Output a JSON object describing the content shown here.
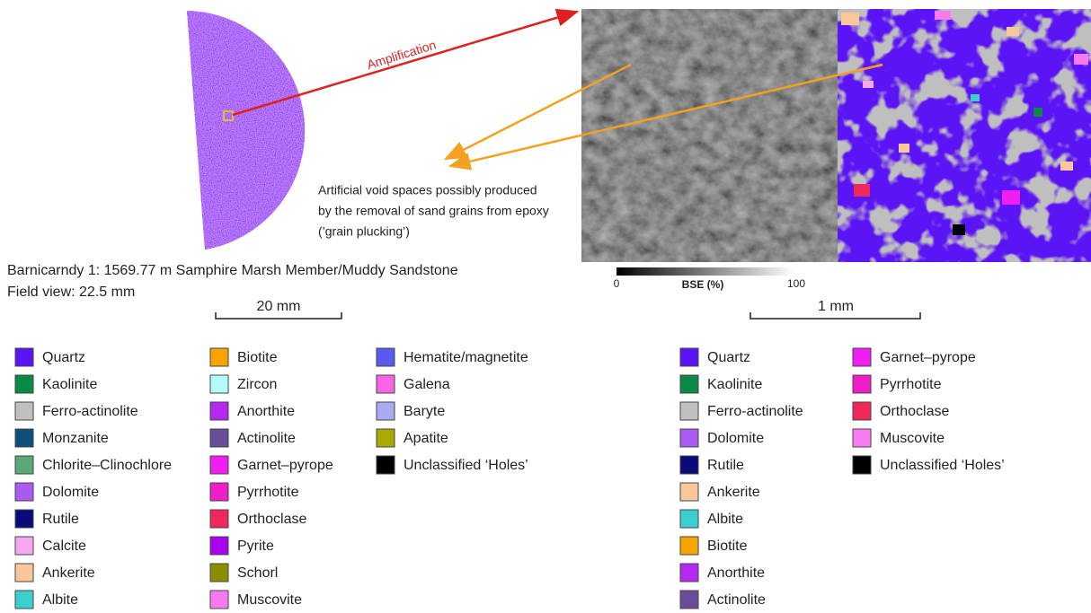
{
  "sample_view": {
    "annotation": "Amplification",
    "caption_lines": [
      "Barnicarndy 1: 1569.77 m Samphire Marsh Member/Muddy Sandstone",
      "Field view: 22.5 mm"
    ],
    "scale_bar": "20 mm"
  },
  "void_note": {
    "lines": [
      "Artificial void spaces possibly produced",
      "by the removal of sand grains from epoxy",
      "(’grain plucking’)"
    ]
  },
  "bse_colorbar": {
    "min_label": 0,
    "label": "BSE (%)",
    "max_label": 100
  },
  "mineral_scale_bar": "1 mm",
  "legend_left": {
    "columns": [
      [
        {
          "name": "Quartz",
          "color": "#5b14f5"
        },
        {
          "name": "Kaolinite",
          "color": "#0a8a47"
        },
        {
          "name": "Ferro-actinolite",
          "color": "#c0c0c0"
        },
        {
          "name": "Monzanite",
          "color": "#0e4e78"
        },
        {
          "name": "Chlorite–Clinochlore",
          "color": "#5aa878"
        },
        {
          "name": "Dolomite",
          "color": "#a95af0"
        },
        {
          "name": "Rutile",
          "color": "#0a0a78"
        },
        {
          "name": "Calcite",
          "color": "#f6a8f0"
        },
        {
          "name": "Ankerite",
          "color": "#f8c89a"
        },
        {
          "name": "Albite",
          "color": "#3ccfcf"
        }
      ],
      [
        {
          "name": "Biotite",
          "color": "#f8a400"
        },
        {
          "name": "Zircon",
          "color": "#b4fafa"
        },
        {
          "name": "Anorthite",
          "color": "#b429f0"
        },
        {
          "name": "Actinolite",
          "color": "#6a4c9c"
        },
        {
          "name": "Garnet–pyrope",
          "color": "#f01ef0"
        },
        {
          "name": "Pyrrhotite",
          "color": "#f01ec8"
        },
        {
          "name": "Orthoclase",
          "color": "#f0285a"
        },
        {
          "name": "Pyrite",
          "color": "#aa00f0"
        },
        {
          "name": "Schorl",
          "color": "#8c8c00"
        },
        {
          "name": "Muscovite",
          "color": "#f87af0"
        }
      ],
      [
        {
          "name": "Hematite/magnetite",
          "color": "#5a5af0"
        },
        {
          "name": "Galena",
          "color": "#f864e6"
        },
        {
          "name": "Baryte",
          "color": "#aaaaf0"
        },
        {
          "name": "Apatite",
          "color": "#aaaa00"
        },
        {
          "name": "Unclassified ‘Holes’",
          "color": "#000000"
        }
      ]
    ]
  },
  "legend_right": {
    "columns": [
      [
        {
          "name": "Quartz",
          "color": "#5b14f5"
        },
        {
          "name": "Kaolinite",
          "color": "#0a8a47"
        },
        {
          "name": "Ferro-actinolite",
          "color": "#c0c0c0"
        },
        {
          "name": "Dolomite",
          "color": "#a95af0"
        },
        {
          "name": "Rutile",
          "color": "#0a0a78"
        },
        {
          "name": "Ankerite",
          "color": "#f8c89a"
        },
        {
          "name": "Albite",
          "color": "#3ccfcf"
        },
        {
          "name": "Biotite",
          "color": "#f8a400"
        },
        {
          "name": "Anorthite",
          "color": "#b429f0"
        },
        {
          "name": "Actinolite",
          "color": "#6a4c9c"
        }
      ],
      [
        {
          "name": "Garnet–pyrope",
          "color": "#f01ef0"
        },
        {
          "name": "Pyrrhotite",
          "color": "#f01ec8"
        },
        {
          "name": "Orthoclase",
          "color": "#f0285a"
        },
        {
          "name": "Muscovite",
          "color": "#f87af0"
        },
        {
          "name": "Unclassified ‘Holes’",
          "color": "#000000"
        }
      ]
    ]
  }
}
